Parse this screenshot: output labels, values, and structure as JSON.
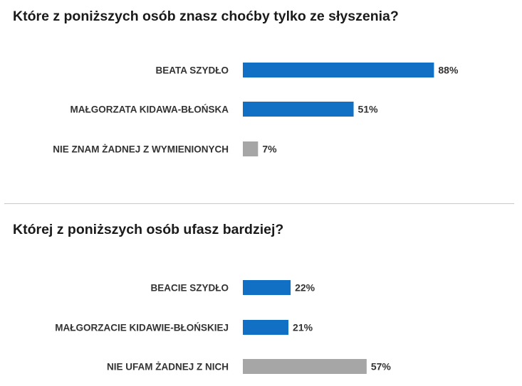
{
  "chart_data": [
    {
      "type": "bar",
      "orientation": "horizontal",
      "title": "Które z poniższych osób znasz choćby tylko ze słyszenia?",
      "categories": [
        "BEATA SZYDŁO",
        "MAŁGORZATA KIDAWA-BŁOŃSKA",
        "NIE ZNAM ŻADNEJ Z WYMIENIONYCH"
      ],
      "values": [
        88,
        51,
        7
      ],
      "value_labels": [
        "88%",
        "51%",
        "7%"
      ],
      "colors": [
        "#1170c4",
        "#1170c4",
        "#a6a6a6"
      ],
      "unit": "%",
      "xlim": [
        0,
        100
      ],
      "grid": false
    },
    {
      "type": "bar",
      "orientation": "horizontal",
      "title": "Której z poniższych osób ufasz bardziej?",
      "categories": [
        "BEACIE SZYDŁO",
        "MAŁGORZACIE KIDAWIE-BŁOŃSKIEJ",
        "NIE UFAM ŻADNEJ Z NICH"
      ],
      "values": [
        22,
        21,
        57
      ],
      "value_labels": [
        "22%",
        "21%",
        "57%"
      ],
      "colors": [
        "#1170c4",
        "#1170c4",
        "#a6a6a6"
      ],
      "unit": "%",
      "xlim": [
        0,
        100
      ],
      "grid": false
    }
  ]
}
